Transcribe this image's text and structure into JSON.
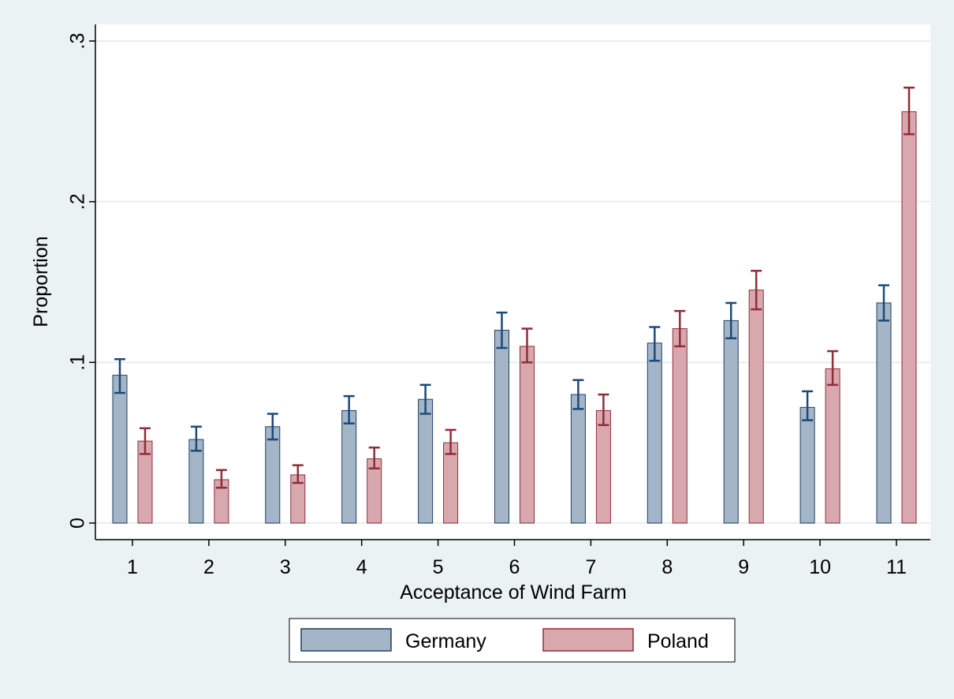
{
  "chart_data": {
    "type": "bar",
    "xlabel": "Acceptance of Wind Farm",
    "ylabel": "Proportion",
    "ylim": [
      0,
      0.3
    ],
    "yticks": [
      0,
      0.1,
      0.2,
      0.3
    ],
    "ytick_labels": [
      "0",
      ".1",
      ".2",
      ".3"
    ],
    "categories": [
      "1",
      "2",
      "3",
      "4",
      "5",
      "6",
      "7",
      "8",
      "9",
      "10",
      "11"
    ],
    "grid": true,
    "legend_position": "bottom",
    "error_bars": true,
    "series": [
      {
        "name": "Germany",
        "fill": "#a4b5c8",
        "stroke": "#1e3f66",
        "err_color": "#1b4a78",
        "values": [
          0.092,
          0.052,
          0.06,
          0.07,
          0.077,
          0.12,
          0.08,
          0.112,
          0.126,
          0.072,
          0.137
        ],
        "lower": [
          0.081,
          0.045,
          0.052,
          0.062,
          0.068,
          0.109,
          0.071,
          0.101,
          0.115,
          0.064,
          0.126
        ],
        "upper": [
          0.102,
          0.06,
          0.068,
          0.079,
          0.086,
          0.131,
          0.089,
          0.122,
          0.137,
          0.082,
          0.148
        ]
      },
      {
        "name": "Poland",
        "fill": "#d8a8ae",
        "stroke": "#8f2d39",
        "err_color": "#8f2d39",
        "values": [
          0.051,
          0.027,
          0.03,
          0.04,
          0.05,
          0.11,
          0.07,
          0.121,
          0.145,
          0.096,
          0.256
        ],
        "lower": [
          0.043,
          0.022,
          0.025,
          0.034,
          0.043,
          0.1,
          0.061,
          0.11,
          0.133,
          0.086,
          0.242
        ],
        "upper": [
          0.059,
          0.033,
          0.036,
          0.047,
          0.058,
          0.121,
          0.08,
          0.132,
          0.157,
          0.107,
          0.271
        ]
      }
    ]
  }
}
